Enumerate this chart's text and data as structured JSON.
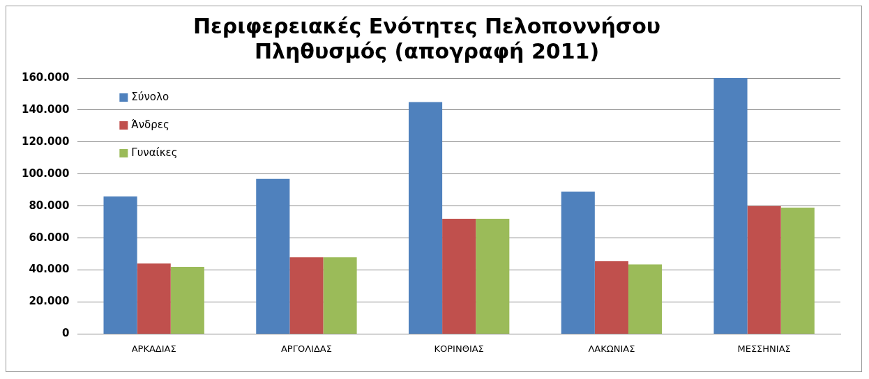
{
  "chart_data": {
    "type": "bar",
    "title": "Περιφερειακές Ενότητες Πελοποννήσου\nΠληθυσμός (απογραφή 2011)",
    "categories": [
      "ΑΡΚΑΔΙΑΣ",
      "ΑΡΓΟΛΙΔΑΣ",
      "ΚΟΡΙΝΘΙΑΣ",
      "ΛΑΚΩΝΙΑΣ",
      "ΜΕΣΣΗΝΙΑΣ"
    ],
    "series": [
      {
        "name": "Σύνολο",
        "color": "#4f81bd",
        "values": [
          86000,
          97000,
          145000,
          89000,
          160000
        ]
      },
      {
        "name": "Άνδρες",
        "color": "#c0504d",
        "values": [
          44000,
          48000,
          72000,
          45500,
          80000
        ]
      },
      {
        "name": "Γυναίκες",
        "color": "#9bbb59",
        "values": [
          42000,
          48000,
          72000,
          43500,
          79000
        ]
      }
    ],
    "ylim": [
      0,
      160000
    ],
    "yticks": [
      {
        "value": 0,
        "label": "0"
      },
      {
        "value": 20000,
        "label": "20.000"
      },
      {
        "value": 40000,
        "label": "40.000"
      },
      {
        "value": 60000,
        "label": "60.000"
      },
      {
        "value": 80000,
        "label": "80.000"
      },
      {
        "value": 100000,
        "label": "100.000"
      },
      {
        "value": 120000,
        "label": "120.000"
      },
      {
        "value": 140000,
        "label": "140.000"
      },
      {
        "value": 160000,
        "label": "160.000"
      }
    ],
    "grid": "y",
    "legend": "top left"
  }
}
